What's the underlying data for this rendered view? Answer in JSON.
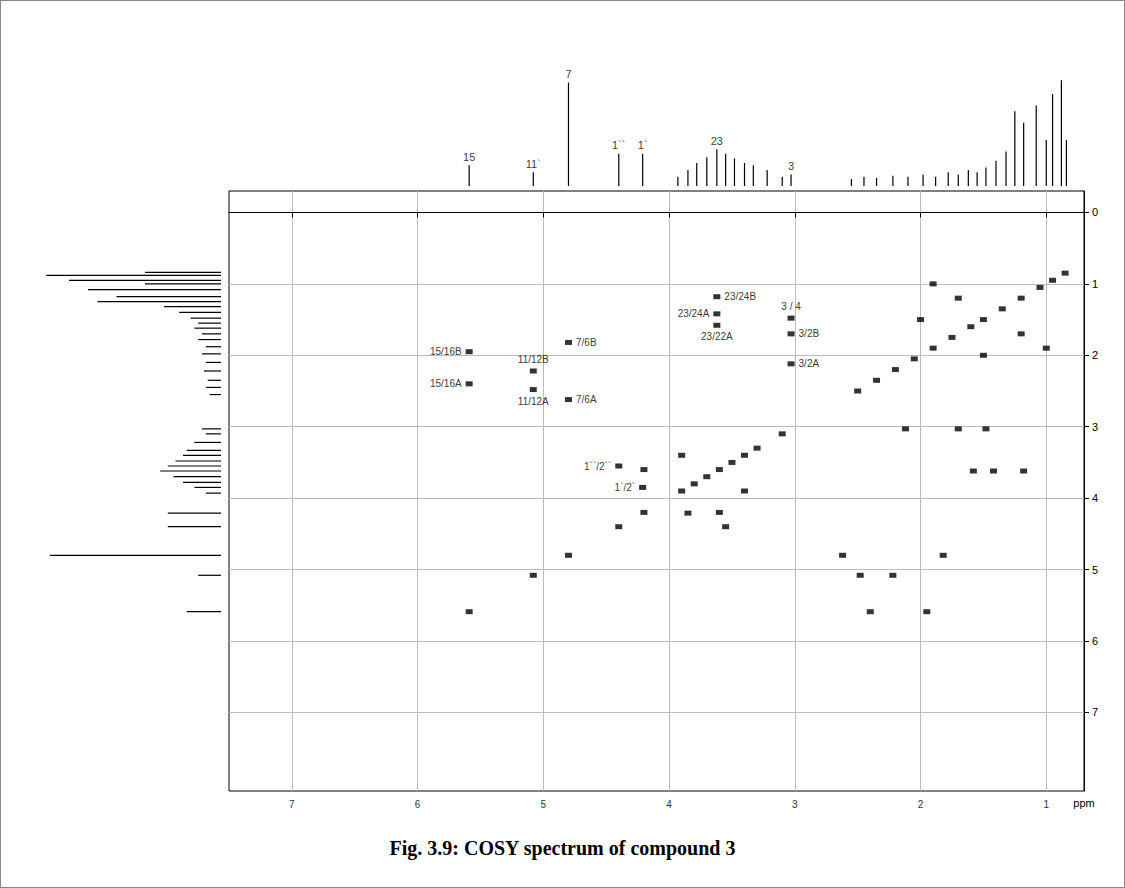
{
  "chart_data": {
    "type": "scatter",
    "title": "Fig. 3.9: COSY spectrum of compound 3",
    "y_label": "ppm",
    "xlim": [
      0.7,
      7.5
    ],
    "xticks": [
      1,
      2,
      3,
      4,
      5,
      6,
      7
    ],
    "ylim": [
      -0.3,
      8.1
    ],
    "yticks": [
      0,
      1,
      2,
      3,
      4,
      5,
      6,
      7
    ],
    "grid": true,
    "marker": "square",
    "color": "#000000",
    "cross_peaks": {
      "x": [
        5.59,
        5.59,
        5.08,
        5.08,
        4.8,
        4.8,
        3.62,
        3.62,
        3.62,
        3.03,
        3.03,
        3.03,
        4.4,
        4.21,
        1.95,
        2.4,
        2.22,
        2.48,
        1.82,
        2.62,
        1.18,
        1.42,
        1.58,
        3.55,
        3.85,
        1.48,
        1.7,
        2.12,
        2.0,
        1.5,
        1.7,
        1.2,
        1.9,
        1.0,
        3.4,
        3.9,
        3.6,
        4.2,
        0.85,
        0.95,
        1.05,
        1.2,
        1.35,
        1.5,
        1.6,
        1.75,
        1.9,
        2.05,
        2.2,
        2.35,
        2.5,
        3.1,
        3.3,
        3.4,
        3.5,
        3.6,
        3.7,
        3.8,
        3.9,
        4.2,
        4.4,
        4.8,
        5.08,
        5.59
      ],
      "y": [
        1.95,
        2.4,
        2.22,
        2.48,
        1.82,
        2.62,
        1.18,
        1.42,
        1.58,
        1.48,
        1.7,
        2.12,
        3.55,
        3.85,
        5.59,
        5.59,
        5.08,
        5.08,
        4.8,
        4.8,
        3.62,
        3.62,
        3.62,
        4.4,
        4.21,
        3.03,
        3.03,
        3.03,
        1.5,
        2.0,
        1.2,
        1.7,
        1.0,
        1.9,
        3.9,
        3.4,
        4.2,
        3.6,
        0.85,
        0.95,
        1.05,
        1.2,
        1.35,
        1.5,
        1.6,
        1.75,
        1.9,
        2.05,
        2.2,
        2.35,
        2.5,
        3.1,
        3.3,
        3.4,
        3.5,
        3.6,
        3.7,
        3.8,
        3.9,
        4.2,
        4.4,
        4.8,
        5.08,
        5.59
      ],
      "labels": [
        "15/16B",
        "15/16A",
        "11/12B",
        "11/12A",
        "7/6B",
        "7/6A",
        "23/24B",
        "23/24A",
        "23/22A",
        "3 / 4",
        "3/2B",
        "3/2A",
        "1``/2``",
        "1`/2`",
        null,
        null,
        null,
        null,
        null,
        null,
        null,
        null,
        null,
        null,
        null,
        null,
        null,
        null,
        null,
        null,
        null,
        null,
        null,
        null,
        null,
        null,
        null,
        null,
        null,
        null,
        null,
        null,
        null,
        null,
        null,
        null,
        null,
        null,
        null,
        null,
        null,
        null,
        null,
        null,
        null,
        null,
        null,
        null,
        null,
        null,
        null,
        null,
        null,
        null
      ]
    },
    "projection": {
      "intensity_lim": [
        0,
        100
      ],
      "ppm": [
        5.59,
        5.08,
        4.8,
        4.4,
        4.21,
        3.93,
        3.85,
        3.78,
        3.7,
        3.62,
        3.55,
        3.48,
        3.4,
        3.33,
        3.22,
        3.1,
        3.03,
        2.55,
        2.45,
        2.35,
        2.22,
        2.1,
        1.98,
        1.88,
        1.78,
        1.7,
        1.62,
        1.55,
        1.48,
        1.4,
        1.32,
        1.25,
        1.18,
        1.08,
        1.0,
        0.95,
        0.88,
        0.84
      ],
      "intensity": [
        18,
        12,
        90,
        28,
        28,
        8,
        14,
        20,
        25,
        32,
        28,
        24,
        20,
        18,
        14,
        8,
        10,
        6,
        8,
        7,
        9,
        8,
        10,
        8,
        12,
        10,
        14,
        12,
        16,
        22,
        30,
        65,
        55,
        70,
        40,
        80,
        92,
        40
      ],
      "labels": [
        "15",
        "11`",
        "7",
        "1``",
        "1`",
        null,
        null,
        null,
        null,
        "23",
        null,
        null,
        null,
        null,
        null,
        null,
        "3",
        null,
        null,
        null,
        null,
        null,
        null,
        null,
        null,
        null,
        null,
        null,
        null,
        null,
        null,
        null,
        null,
        null,
        null,
        null,
        null,
        null
      ]
    }
  }
}
